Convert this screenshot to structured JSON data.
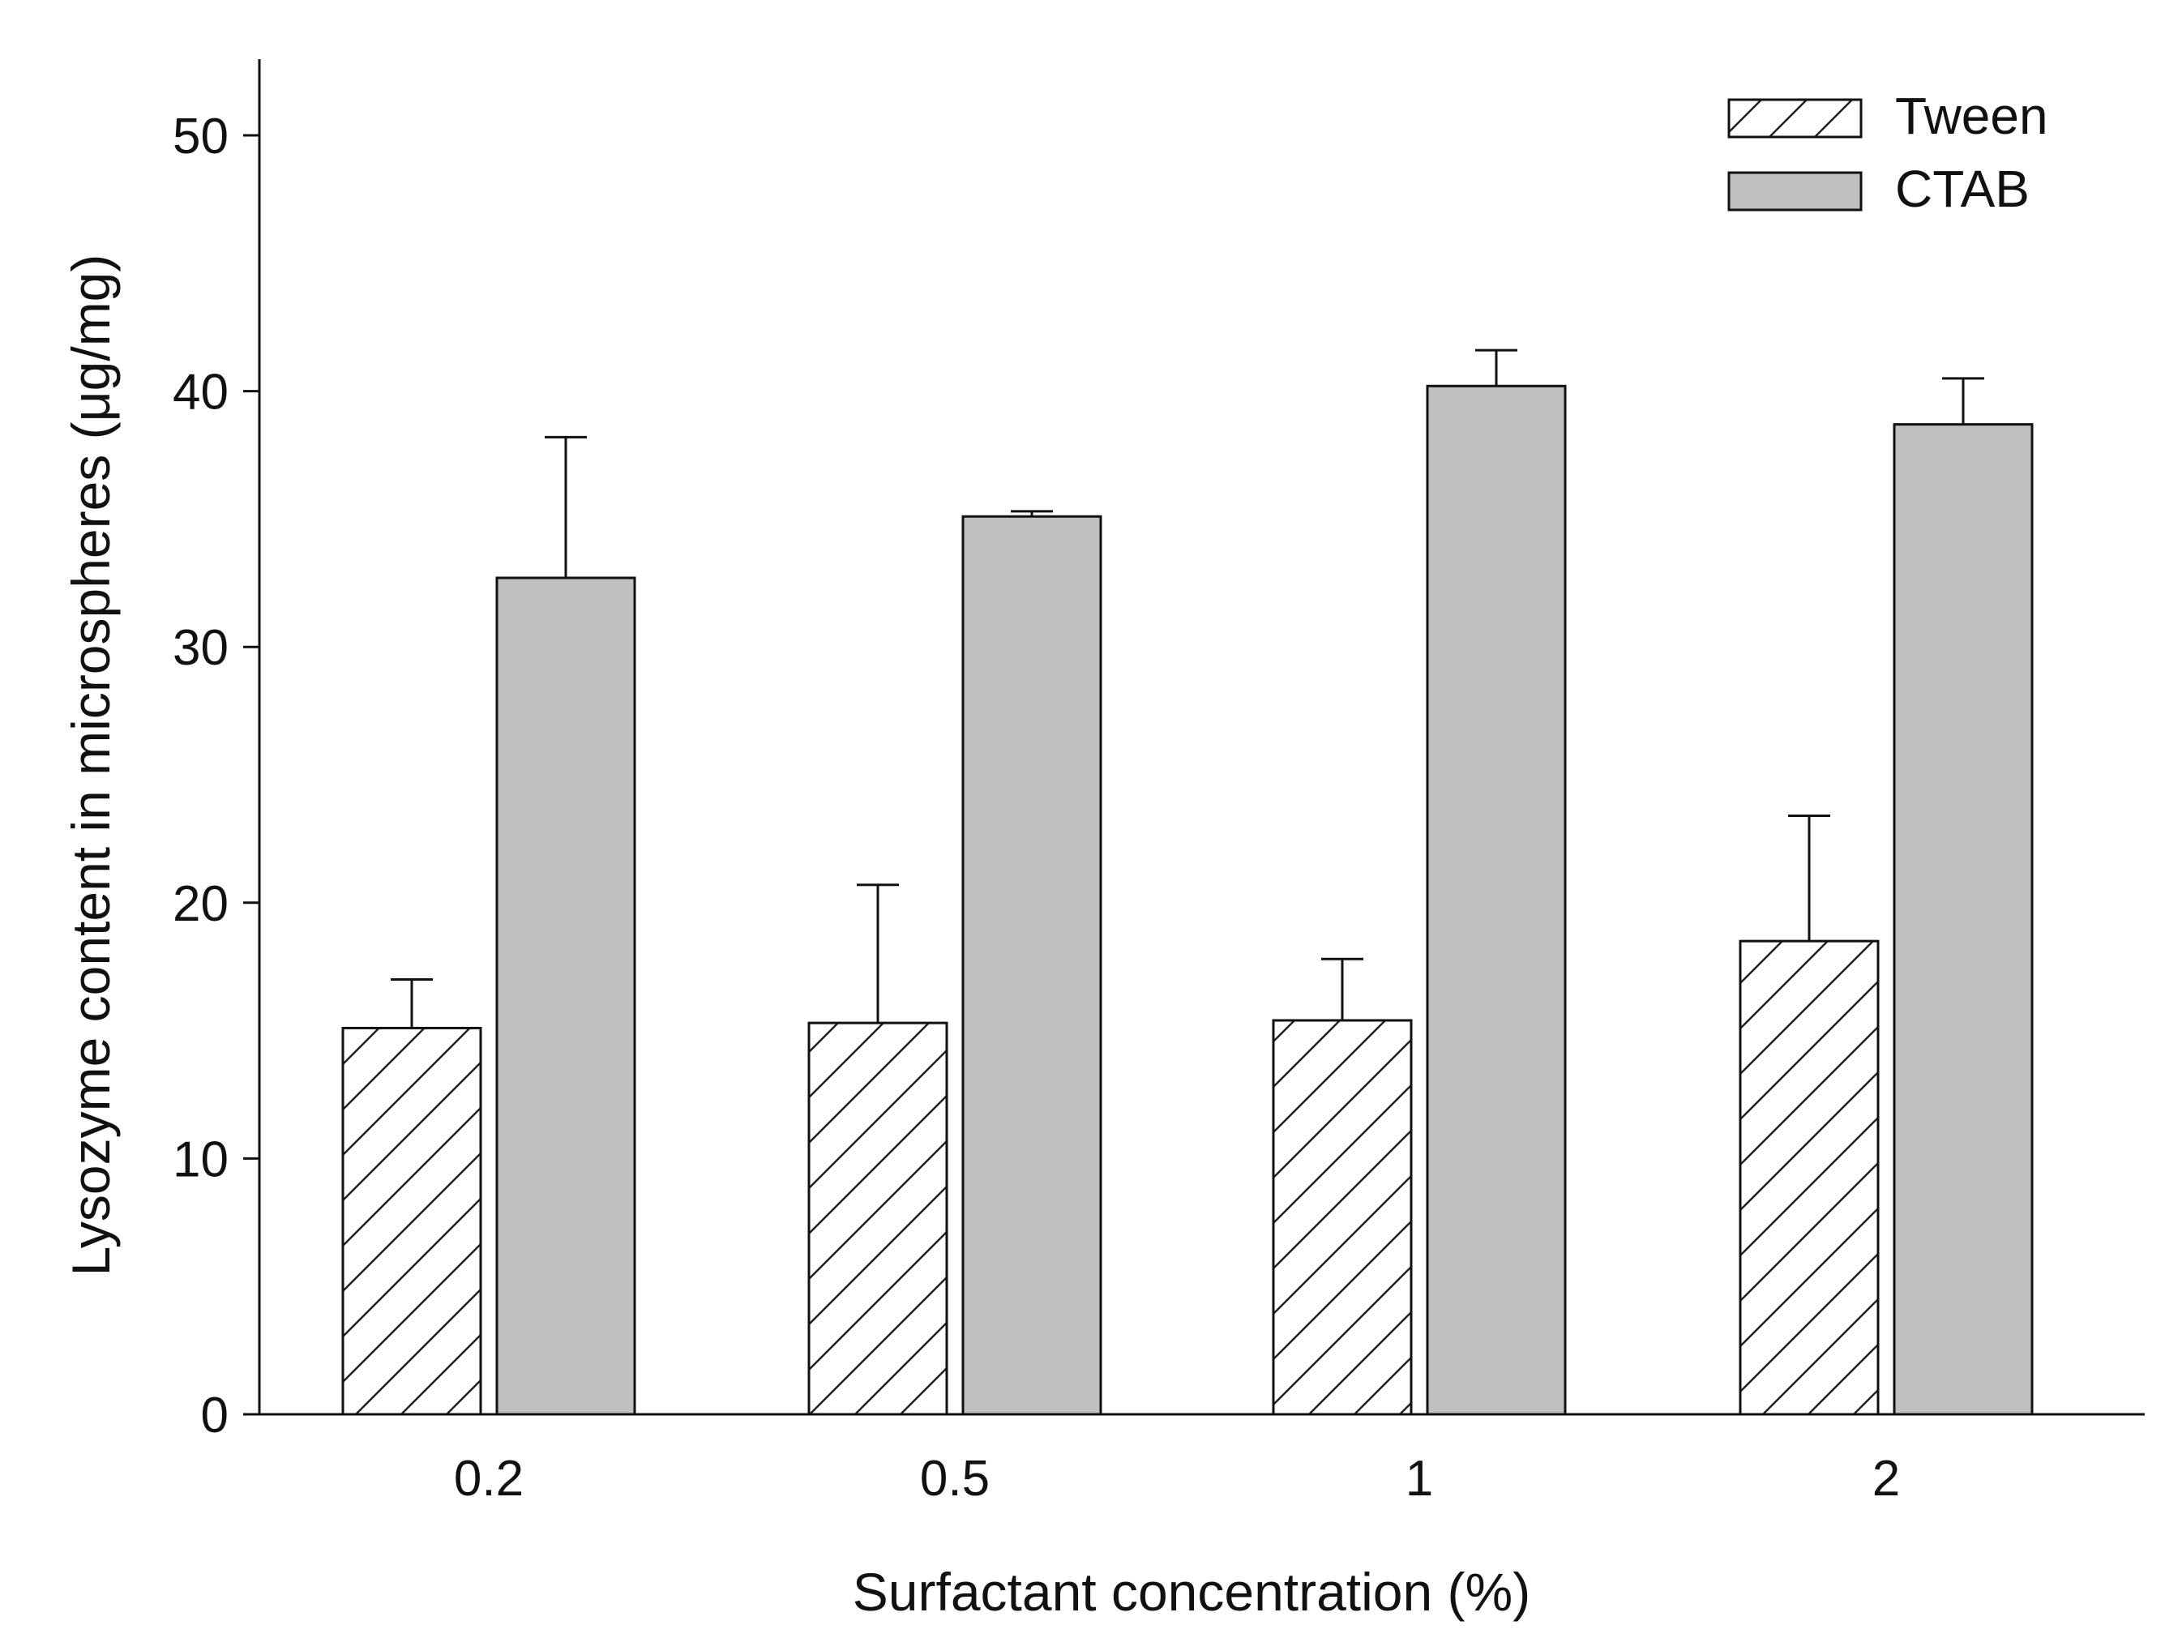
{
  "chart_data": {
    "type": "bar",
    "title": "",
    "xlabel": "Surfactant concentration (%)",
    "ylabel": "Lysozyme content in microspheres (μg/mg)",
    "categories": [
      "0.2",
      "0.5",
      "1",
      "2"
    ],
    "series": [
      {
        "name": "Tween",
        "pattern": "hatched",
        "fill": "#ffffff",
        "values": [
          15.1,
          15.3,
          15.4,
          18.5
        ],
        "errors": [
          1.9,
          5.4,
          2.4,
          4.9
        ]
      },
      {
        "name": "CTAB",
        "pattern": "solid",
        "fill": "#c0c0c0",
        "values": [
          32.7,
          35.1,
          40.2,
          38.7
        ],
        "errors": [
          5.5,
          0.2,
          1.4,
          1.8
        ]
      }
    ],
    "yticks": [
      "0",
      "10",
      "20",
      "30",
      "40",
      "50"
    ],
    "ylim": [
      0,
      53
    ],
    "grid": false,
    "legend_position": "top-right"
  },
  "colors": {
    "axis": "#111111",
    "tween_fill": "#ffffff",
    "ctab_fill": "#c0c0c0",
    "bar_stroke": "#111111"
  }
}
